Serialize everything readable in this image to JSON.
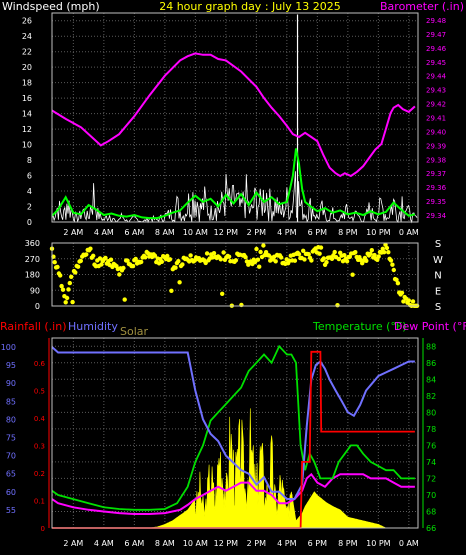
{
  "header": {
    "title": "24 hour graph day : July 13 2025",
    "left_label": "Windspeed (mph)",
    "right_label": "Barometer (.in)"
  },
  "colors": {
    "background": "#000000",
    "grid": "#5a5a5a",
    "frame": "#c0c0c0",
    "title": "#ffff00",
    "wind_speed": "#ffffff",
    "wind_avg": "#00ff00",
    "barometer": "#ff00ff",
    "wind_dir": "#ffff00",
    "rain": "#ff0000",
    "humidity": "#7070ff",
    "solar": "#ffff00",
    "temperature": "#00e000",
    "dewpoint": "#ff00ff"
  },
  "chart_data": [
    {
      "type": "line",
      "title": "24 hour graph day : July 13 2025",
      "x_tick_labels": [
        "2 AM",
        "4 AM",
        "6 AM",
        "8 AM",
        "10 AM",
        "12 PM",
        "2 PM",
        "4 PM",
        "6 PM",
        "8 PM",
        "10 PM",
        "0 AM"
      ],
      "x_ticks": [
        2,
        4,
        6,
        8,
        10,
        12,
        14,
        16,
        18,
        20,
        22,
        24
      ],
      "xlim": [
        0.6,
        24.6
      ],
      "grid": true,
      "left_axis": {
        "label": "Windspeed (mph)",
        "ylim": [
          0,
          27
        ],
        "ticks": [
          0,
          2,
          4,
          6,
          8,
          10,
          12,
          14,
          16,
          18,
          20,
          22,
          24,
          26
        ]
      },
      "right_axis": {
        "label": "Barometer (.in)",
        "ylim": [
          29.335,
          29.485
        ],
        "ticks": [
          "29.34",
          "29.35",
          "29.36",
          "29.37",
          "29.38",
          "29.39",
          "29.40",
          "29.41",
          "29.42",
          "29.43",
          "29.44",
          "29.45",
          "29.46",
          "29.47",
          "29.48"
        ]
      },
      "series": [
        {
          "name": "Barometer",
          "axis": "right",
          "x": [
            0.6,
            1.5,
            2.5,
            3.3,
            3.8,
            4.3,
            5,
            6,
            7,
            8,
            9,
            9.5,
            10,
            10.5,
            11,
            11.5,
            12,
            13,
            14,
            14.5,
            15,
            15.5,
            16,
            16.4,
            16.8,
            17.2,
            17.6,
            18,
            18.4,
            18.8,
            19.2,
            19.5,
            19.8,
            20.2,
            20.6,
            21,
            21.4,
            21.8,
            22.2,
            22.5,
            22.8,
            23,
            23.3,
            23.6,
            24,
            24.4
          ],
          "values": [
            29.415,
            29.409,
            29.403,
            29.395,
            29.39,
            29.393,
            29.398,
            29.411,
            29.426,
            29.44,
            29.451,
            29.454,
            29.456,
            29.455,
            29.455,
            29.452,
            29.451,
            29.443,
            29.432,
            29.424,
            29.417,
            29.411,
            29.404,
            29.398,
            29.396,
            29.399,
            29.396,
            29.393,
            29.383,
            29.374,
            29.37,
            29.368,
            29.37,
            29.368,
            29.371,
            29.375,
            29.381,
            29.387,
            29.391,
            29.402,
            29.413,
            29.417,
            29.419,
            29.416,
            29.414,
            29.418
          ]
        },
        {
          "name": "Wind average",
          "axis": "left",
          "x": [
            0.6,
            1,
            1.5,
            2,
            2.5,
            3,
            3.5,
            4,
            4.5,
            5,
            5.5,
            6,
            6.5,
            7,
            7.5,
            8,
            8.5,
            9,
            9.5,
            10,
            10.5,
            11,
            11.5,
            12,
            12.5,
            13,
            13.5,
            14,
            14.5,
            15,
            15.5,
            16,
            16.2,
            16.4,
            16.6,
            16.8,
            17,
            17.2,
            17.5,
            18,
            18.5,
            19,
            19.5,
            20,
            20.5,
            21,
            21.5,
            22,
            22.5,
            23,
            23.5,
            24,
            24.4
          ],
          "values": [
            0.8,
            1.6,
            3.2,
            1.2,
            1.0,
            2.2,
            1.6,
            0.9,
            1.1,
            0.8,
            0.7,
            0.9,
            0.6,
            0.5,
            0.5,
            0.8,
            1.2,
            1.5,
            2.5,
            3.4,
            2.6,
            3.0,
            2.0,
            3.5,
            2.4,
            3.6,
            2.2,
            3.8,
            2.6,
            3.2,
            2.3,
            2.6,
            4.2,
            6.0,
            9.5,
            7.5,
            4.3,
            2.6,
            2.1,
            1.4,
            1.8,
            1.2,
            1.5,
            1.0,
            1.2,
            0.9,
            1.4,
            1.0,
            1.3,
            2.5,
            1.6,
            0.8,
            1.0
          ]
        },
        {
          "name": "Wind speed",
          "axis": "left",
          "x": [
            0.6,
            1,
            1.3,
            1.6,
            2,
            2.3,
            2.6,
            3,
            3.3,
            3.6,
            4,
            4.4,
            4.8,
            5.2,
            5.6,
            6,
            6.5,
            7,
            7.5,
            8,
            8.4,
            8.8,
            9.2,
            9.6,
            10,
            10.3,
            10.6,
            11,
            11.3,
            11.6,
            12,
            12.3,
            12.6,
            13,
            13.3,
            13.6,
            14,
            14.3,
            14.6,
            15,
            15.3,
            15.6,
            16,
            16.3,
            16.5,
            16.6,
            16.7,
            16.8,
            17,
            17.3,
            17.6,
            18,
            18.3,
            18.6,
            19,
            19.4,
            19.8,
            20.2,
            20.6,
            21,
            21.4,
            21.8,
            22.2,
            22.6,
            23,
            23.3,
            23.6,
            24,
            24.4
          ],
          "values": [
            1,
            4,
            1,
            5,
            2,
            0.5,
            3,
            1,
            7,
            2,
            0.5,
            2,
            0,
            1.5,
            0,
            1,
            0,
            1,
            0.5,
            1.5,
            2,
            4,
            1.5,
            5,
            7,
            3,
            5,
            2,
            6,
            3,
            7,
            4,
            6,
            3,
            7,
            2,
            6,
            4,
            8,
            3,
            5,
            2,
            5,
            3,
            9,
            27,
            12,
            5,
            3,
            2,
            4,
            1,
            3,
            0.5,
            2,
            0,
            3,
            1,
            2,
            0,
            3,
            1,
            4,
            1,
            5,
            1,
            6,
            2,
            1
          ]
        },
        {
          "name": "Wind direction",
          "axis": "dir",
          "unit": "deg",
          "x": [
            0.6,
            1.5,
            2,
            2.5,
            3,
            3.5,
            4,
            4.5,
            5,
            5.5,
            6,
            6.5,
            7,
            7.5,
            8,
            8.5,
            9,
            9.5,
            10,
            10.5,
            11,
            11.5,
            12,
            12.5,
            13,
            13.5,
            14,
            14.5,
            15,
            15.5,
            16,
            16.5,
            17,
            17.5,
            18,
            18.5,
            19,
            19.5,
            20,
            20.5,
            21,
            21.5,
            22,
            22.5,
            23,
            23.5,
            24,
            24.4
          ],
          "values": [
            320,
            40,
            200,
            250,
            330,
            240,
            270,
            250,
            200,
            240,
            255,
            270,
            300,
            260,
            280,
            230,
            250,
            260,
            280,
            250,
            300,
            260,
            290,
            240,
            330,
            250,
            270,
            300,
            280,
            270,
            260,
            280,
            300,
            270,
            330,
            250,
            290,
            280,
            270,
            300,
            260,
            300,
            280,
            330,
            200,
            60,
            20,
            0
          ]
        }
      ]
    },
    {
      "type": "scatter",
      "title": "",
      "ylim": [
        0,
        360
      ],
      "y_ticks": [
        0,
        90,
        180,
        270,
        360
      ],
      "compass_labels": [
        "S",
        "E",
        "N",
        "W",
        "S"
      ]
    },
    {
      "type": "line",
      "title": "",
      "x_tick_labels": [
        "2 AM",
        "4 AM",
        "6 AM",
        "8 AM",
        "10 AM",
        "12 PM",
        "2 PM",
        "4 PM",
        "6 PM",
        "8 PM",
        "10 PM",
        "0 AM"
      ],
      "labels": {
        "rainfall": "Rainfall (.in)",
        "humidity": "Humidity",
        "solar": "Solar",
        "temperature": "Temperature (°F)",
        "dewpoint": "Dew Point (°F)"
      },
      "rain_axis": {
        "ylim": [
          0,
          0.69
        ],
        "ticks": [
          "0",
          "0.1",
          "0.2",
          "0.3",
          "0.4",
          "0.5",
          "0.6"
        ]
      },
      "humidity_axis": {
        "ylim": [
          50,
          102.5
        ],
        "ticks": [
          "55",
          "60",
          "65",
          "70",
          "75",
          "80",
          "85",
          "90",
          "95",
          "100"
        ]
      },
      "temp_axis": {
        "ylim": [
          66,
          89
        ],
        "ticks": [
          "66",
          "68",
          "70",
          "72",
          "74",
          "76",
          "78",
          "80",
          "82",
          "84",
          "86",
          "88"
        ]
      },
      "series": [
        {
          "name": "Humidity",
          "axis": "humidity",
          "x": [
            0.6,
            1,
            2,
            4,
            6,
            8,
            9.5,
            10,
            10.5,
            11,
            11.5,
            12,
            12.5,
            13,
            13.5,
            14,
            14.5,
            15,
            15.5,
            16,
            16.5,
            17,
            17.3,
            17.6,
            17.9,
            18.2,
            18.5,
            18.8,
            19.2,
            19.6,
            20,
            20.4,
            20.8,
            21.2,
            21.6,
            22,
            22.5,
            23,
            23.5,
            24,
            24.4
          ],
          "values": [
            100,
            98.5,
            98.5,
            98.5,
            98.5,
            98.5,
            98.5,
            88,
            80,
            76,
            74,
            70,
            68,
            66,
            65,
            62,
            64,
            60,
            60,
            58,
            58,
            62,
            78,
            91,
            95,
            96,
            94,
            91,
            88,
            85,
            82,
            81,
            84,
            88,
            90,
            92,
            93,
            94,
            95,
            96,
            96
          ]
        },
        {
          "name": "Temperature",
          "axis": "temp",
          "x": [
            0.6,
            1,
            2,
            3,
            4,
            5,
            6,
            7,
            8,
            8.8,
            9.5,
            10,
            10.5,
            11,
            11.5,
            12,
            12.5,
            13,
            13.5,
            14,
            14.5,
            15,
            15.5,
            16,
            16.3,
            16.6,
            16.9,
            17.2,
            17.5,
            17.8,
            18.2,
            18.6,
            19,
            19.4,
            19.8,
            20.2,
            20.6,
            21,
            21.5,
            22,
            22.5,
            23,
            23.5,
            24,
            24.4
          ],
          "values": [
            70.5,
            70,
            69.5,
            69,
            68.5,
            68.3,
            68.2,
            68.2,
            68.3,
            69,
            71,
            74,
            76,
            79,
            80,
            81,
            82,
            83,
            85,
            86,
            87,
            86,
            88,
            87,
            87,
            86,
            76,
            73,
            75,
            74,
            72,
            72,
            72,
            74,
            75,
            76,
            76,
            75,
            74,
            73.5,
            73,
            73,
            72,
            72,
            72
          ]
        },
        {
          "name": "Dew Point",
          "axis": "temp",
          "x": [
            0.6,
            1,
            2,
            3,
            4,
            5,
            6,
            7,
            8,
            9,
            9.5,
            10,
            10.5,
            11,
            11.5,
            12,
            12.5,
            13,
            13.5,
            14,
            14.5,
            15,
            15.5,
            16,
            16.5,
            17,
            17.3,
            17.6,
            18,
            18.5,
            19,
            19.5,
            20,
            20.5,
            21,
            21.5,
            22,
            22.5,
            23,
            23.5,
            24,
            24.4
          ],
          "values": [
            69.5,
            69,
            68.5,
            68.2,
            68,
            67.8,
            67.7,
            67.7,
            67.8,
            68.2,
            68.8,
            69.5,
            70,
            70.5,
            71,
            70.5,
            71,
            71.5,
            71.5,
            70.5,
            70.5,
            70,
            69,
            69,
            69.5,
            70.5,
            72,
            72.5,
            71.5,
            71,
            72,
            72.5,
            72.5,
            72.5,
            72.5,
            72,
            72,
            72,
            71.5,
            71,
            71,
            71
          ]
        },
        {
          "name": "Rainfall",
          "axis": "rain",
          "x": [
            0.6,
            16.6,
            16.9,
            17,
            17.5,
            17.6,
            18.2,
            18.25,
            24.4
          ],
          "values": [
            0,
            0,
            0,
            0.24,
            0.24,
            0.64,
            0.64,
            0.35,
            0.35
          ]
        },
        {
          "name": "Solar",
          "axis": "humidity",
          "kind": "area",
          "x": [
            0.6,
            7,
            7.5,
            8,
            8.5,
            9,
            9.5,
            10,
            10.3,
            10.6,
            11,
            11.3,
            11.6,
            12,
            12.3,
            12.6,
            13,
            13.3,
            13.6,
            14,
            14.3,
            14.6,
            15,
            15.3,
            15.6,
            16,
            16.3,
            16.6,
            17,
            17.2,
            17.5,
            17.8,
            18,
            18.3,
            18.6,
            19,
            19.5,
            20,
            21,
            22,
            22.5,
            24.4
          ],
          "values": [
            50,
            50,
            50.3,
            51,
            52,
            53.5,
            55,
            58,
            66,
            56,
            74,
            60,
            84,
            62,
            88,
            70,
            85,
            64,
            84,
            66,
            82,
            62,
            78,
            58,
            70,
            56,
            60,
            52,
            54,
            56,
            58,
            60,
            59,
            58,
            57,
            56,
            55,
            53,
            52,
            51,
            50,
            50
          ]
        }
      ]
    }
  ]
}
